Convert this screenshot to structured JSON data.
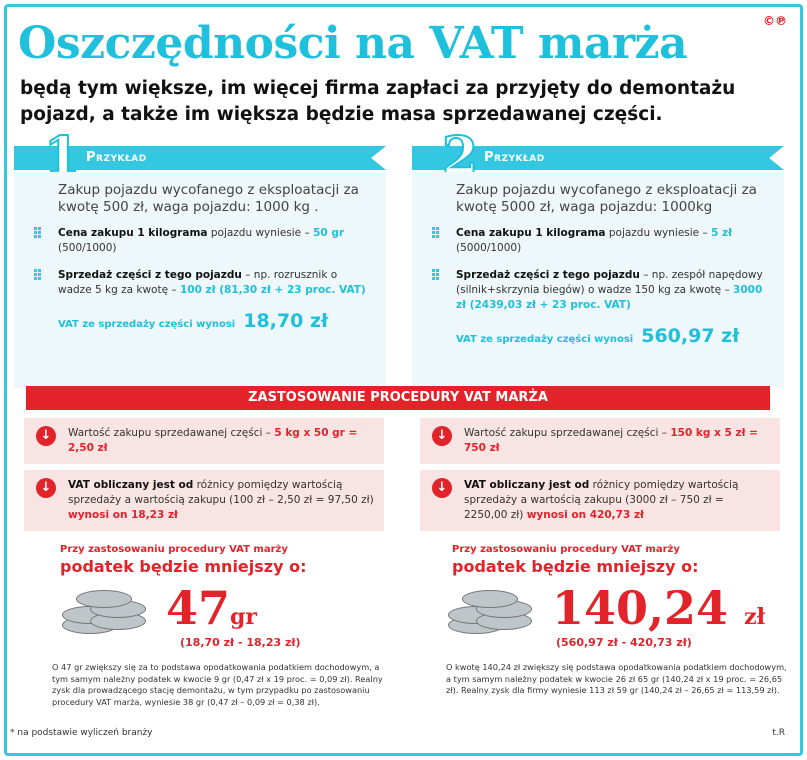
{
  "header": {
    "title": "Oszczędności na VAT marża",
    "subtitle": "będą tym większe, im więcej firma zapłaci za przyjęty do demontażu pojazd, a także im większa będzie  masa sprzedawanej części.",
    "copyright": "©℗"
  },
  "examples": [
    {
      "number": "1",
      "label": "Przykład",
      "lead": "Zakup pojazdu wycofanego z eksploatacji za kwotę 500 zł, waga pojazdu: 1000 kg .",
      "item1_bold": "Cena zakupu 1 kilograma",
      "item1_text": " pojazdu wyniesie – ",
      "item1_value": "50 gr",
      "item1_note": "(500/1000)",
      "item2_bold": "Sprzedaż części z tego pojazdu",
      "item2_text": " – np. rozrusznik o wadze 5 kg za kwotę – ",
      "item2_value": "100 zł (81,30 zł + 23 proc. VAT)",
      "vat_label": "VAT ze sprzedaży części wynosi",
      "vat_value": "18,70 zł"
    },
    {
      "number": "2",
      "label": "Przykład",
      "lead": "Zakup pojazdu wycofanego z eksploatacji za kwotę 5000 zł, waga pojazdu: 1000kg",
      "item1_bold": "Cena zakupu 1 kilograma",
      "item1_text": " pojazdu wyniesie – ",
      "item1_value": "5 zł",
      "item1_note": "(5000/1000)",
      "item2_bold": "Sprzedaż części z tego pojazdu",
      "item2_text": " – np. zespół napędowy (silnik+skrzynia biegów) o wadze 150 kg za kwotę – ",
      "item2_value": "3000 zł (2439,03 zł + 23 proc. VAT)",
      "vat_label": "VAT ze sprzedaży części wynosi",
      "vat_value": "560,97 zł"
    }
  ],
  "procedure_title": "ZASTOSOWANIE PROCEDURY VAT MARŻA",
  "procedure": [
    {
      "box1_text": "Wartość zakupu sprzedawanej części – ",
      "box1_value": "5 kg x 50 gr = 2,50 zł",
      "box2_bold": "VAT obliczany jest od",
      "box2_text": " różnicy pomiędzy wartością sprzedaży a wartością zakupu (100 zł – 2,50 zł = 97,50 zł) ",
      "box2_value": "wynosi on 18,23 zł",
      "sav_small": "Przy zastosowaniu procedury VAT marży",
      "sav_head": "podatek będzie mniejszy o:",
      "big_value": "47",
      "big_unit": "gr",
      "calc": "(18,70 zł - 18,23 zł)",
      "note": "O 47 gr zwiększy się za to podstawa opodatkowania podatkiem dochodowym, a tym samym należny podatek w kwocie 9 gr (0,47 zł x 19 proc. = 0,09 zł). Realny zysk dla prowadzącego stację demontażu, w tym przypadku po zastosowaniu procedury VAT marża, wyniesie 38 gr (0,47 zł – 0,09 zł = 0,38 zł)."
    },
    {
      "box1_text": "Wartość zakupu sprzedawanej części – ",
      "box1_value": "150 kg x 5 zł = 750 zł",
      "box2_bold": "VAT obliczany jest od",
      "box2_text": " różnicy pomiędzy wartością sprzedaży a wartością zakupu (3000 zł – 750 zł = 2250,00 zł) ",
      "box2_value": "wynosi on 420,73 zł",
      "sav_small": "Przy zastosowaniu procedury VAT marży",
      "sav_head": "podatek będzie mniejszy o:",
      "big_value": "140,24",
      "big_unit": "zł",
      "calc": "(560,97 zł - 420,73 zł)",
      "note": "O kwotę 140,24 zł zwiększy się podstawa opodatkowania podatkiem dochodowym, a tym samym należny podatek w kwocie 26 zł 65 gr (140,24 zł x 19 proc. = 26,65 zł). Realny zysk dla firmy wyniesie 113 zł 59 gr (140,24 zł – 26,65 zł = 113,59 zł)."
    }
  ],
  "footer": {
    "note": "* na podstawie wyliczeń branży",
    "credit": "t.R"
  },
  "colors": {
    "accent": "#1ec0dc",
    "red": "#e2232a",
    "panel": "#eef7fa",
    "pink": "#f9e4e4"
  }
}
